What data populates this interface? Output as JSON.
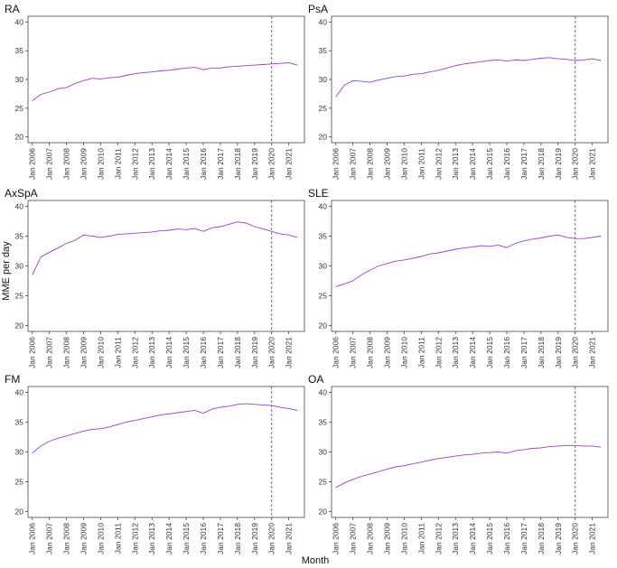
{
  "figure": {
    "xlabel": "Month",
    "ylabel": "MME per day",
    "series_color": "#9d3fc4"
  },
  "chart_data": [
    {
      "type": "line",
      "title": "RA",
      "ylim": [
        19,
        41
      ],
      "yticks": [
        20,
        25,
        30,
        35,
        40
      ],
      "xlim": [
        "2005-10",
        "2021-12"
      ],
      "xticks": [
        "Jan 2006",
        "Jan 2007",
        "Jan 2008",
        "Jan 2009",
        "Jan 2010",
        "Jan 2011",
        "Jan 2012",
        "Jan 2013",
        "Jan 2014",
        "Jan 2015",
        "Jan 2016",
        "Jan 2017",
        "Jan 2018",
        "Jan 2019",
        "Jan 2020",
        "Jan 2021"
      ],
      "reference_line": "2020-01",
      "x": [
        "2006-01",
        "2006-07",
        "2007-01",
        "2007-07",
        "2008-01",
        "2008-07",
        "2009-01",
        "2009-07",
        "2010-01",
        "2010-07",
        "2011-01",
        "2011-07",
        "2012-01",
        "2012-07",
        "2013-01",
        "2013-07",
        "2014-01",
        "2014-07",
        "2015-01",
        "2015-07",
        "2016-01",
        "2016-07",
        "2017-01",
        "2017-07",
        "2018-01",
        "2018-07",
        "2019-01",
        "2019-07",
        "2020-01",
        "2020-07",
        "2021-01",
        "2021-07"
      ],
      "values": [
        26.3,
        27.4,
        27.8,
        28.4,
        28.6,
        29.3,
        29.8,
        30.2,
        30.1,
        30.3,
        30.4,
        30.7,
        31.0,
        31.2,
        31.3,
        31.5,
        31.6,
        31.8,
        32.0,
        32.1,
        31.7,
        32.0,
        32.0,
        32.2,
        32.3,
        32.4,
        32.5,
        32.6,
        32.7,
        32.8,
        32.9,
        32.5
      ]
    },
    {
      "type": "line",
      "title": "PsA",
      "ylim": [
        19,
        41
      ],
      "yticks": [
        20,
        25,
        30,
        35,
        40
      ],
      "xlim": [
        "2005-10",
        "2021-12"
      ],
      "xticks": [
        "Jan 2006",
        "Jan 2007",
        "Jan 2008",
        "Jan 2009",
        "Jan 2010",
        "Jan 2011",
        "Jan 2012",
        "Jan 2013",
        "Jan 2014",
        "Jan 2015",
        "Jan 2016",
        "Jan 2017",
        "Jan 2018",
        "Jan 2019",
        "Jan 2020",
        "Jan 2021"
      ],
      "reference_line": "2020-01",
      "x": [
        "2006-01",
        "2006-07",
        "2007-01",
        "2007-07",
        "2008-01",
        "2008-07",
        "2009-01",
        "2009-07",
        "2010-01",
        "2010-07",
        "2011-01",
        "2011-07",
        "2012-01",
        "2012-07",
        "2013-01",
        "2013-07",
        "2014-01",
        "2014-07",
        "2015-01",
        "2015-07",
        "2016-01",
        "2016-07",
        "2017-01",
        "2017-07",
        "2018-01",
        "2018-07",
        "2019-01",
        "2019-07",
        "2020-01",
        "2020-07",
        "2021-01",
        "2021-07"
      ],
      "values": [
        27.0,
        29.0,
        29.8,
        29.7,
        29.5,
        29.9,
        30.2,
        30.5,
        30.6,
        30.9,
        31.0,
        31.3,
        31.6,
        32.0,
        32.4,
        32.7,
        32.9,
        33.1,
        33.3,
        33.4,
        33.2,
        33.4,
        33.3,
        33.5,
        33.7,
        33.8,
        33.6,
        33.5,
        33.3,
        33.4,
        33.6,
        33.3
      ]
    },
    {
      "type": "line",
      "title": "AxSpA",
      "ylim": [
        19,
        41
      ],
      "yticks": [
        20,
        25,
        30,
        35,
        40
      ],
      "xlim": [
        "2005-10",
        "2021-12"
      ],
      "xticks": [
        "Jan 2006",
        "Jan 2007",
        "Jan 2008",
        "Jan 2009",
        "Jan 2010",
        "Jan 2011",
        "Jan 2012",
        "Jan 2013",
        "Jan 2014",
        "Jan 2015",
        "Jan 2016",
        "Jan 2017",
        "Jan 2018",
        "Jan 2019",
        "Jan 2020",
        "Jan 2021"
      ],
      "reference_line": "2020-01",
      "x": [
        "2006-01",
        "2006-07",
        "2007-01",
        "2007-07",
        "2008-01",
        "2008-07",
        "2009-01",
        "2009-07",
        "2010-01",
        "2010-07",
        "2011-01",
        "2011-07",
        "2012-01",
        "2012-07",
        "2013-01",
        "2013-07",
        "2014-01",
        "2014-07",
        "2015-01",
        "2015-07",
        "2016-01",
        "2016-07",
        "2017-01",
        "2017-07",
        "2018-01",
        "2018-07",
        "2019-01",
        "2019-07",
        "2020-01",
        "2020-07",
        "2021-01",
        "2021-07"
      ],
      "values": [
        28.5,
        31.5,
        32.3,
        33.0,
        33.8,
        34.3,
        35.2,
        35.0,
        34.8,
        35.0,
        35.3,
        35.4,
        35.5,
        35.6,
        35.7,
        35.9,
        36.0,
        36.2,
        36.1,
        36.3,
        35.8,
        36.4,
        36.6,
        37.0,
        37.4,
        37.2,
        36.6,
        36.2,
        35.8,
        35.4,
        35.2,
        34.8
      ]
    },
    {
      "type": "line",
      "title": "SLE",
      "ylim": [
        19,
        41
      ],
      "yticks": [
        20,
        25,
        30,
        35,
        40
      ],
      "xlim": [
        "2005-10",
        "2021-12"
      ],
      "xticks": [
        "Jan 2006",
        "Jan 2007",
        "Jan 2008",
        "Jan 2009",
        "Jan 2010",
        "Jan 2011",
        "Jan 2012",
        "Jan 2013",
        "Jan 2014",
        "Jan 2015",
        "Jan 2016",
        "Jan 2017",
        "Jan 2018",
        "Jan 2019",
        "Jan 2020",
        "Jan 2021"
      ],
      "reference_line": "2020-01",
      "x": [
        "2006-01",
        "2006-07",
        "2007-01",
        "2007-07",
        "2008-01",
        "2008-07",
        "2009-01",
        "2009-07",
        "2010-01",
        "2010-07",
        "2011-01",
        "2011-07",
        "2012-01",
        "2012-07",
        "2013-01",
        "2013-07",
        "2014-01",
        "2014-07",
        "2015-01",
        "2015-07",
        "2016-01",
        "2016-07",
        "2017-01",
        "2017-07",
        "2018-01",
        "2018-07",
        "2019-01",
        "2019-07",
        "2020-01",
        "2020-07",
        "2021-01",
        "2021-07"
      ],
      "values": [
        26.5,
        27.0,
        27.5,
        28.5,
        29.3,
        30.0,
        30.4,
        30.8,
        31.0,
        31.3,
        31.6,
        32.0,
        32.2,
        32.5,
        32.8,
        33.0,
        33.2,
        33.4,
        33.3,
        33.5,
        33.1,
        33.8,
        34.2,
        34.5,
        34.7,
        35.0,
        35.2,
        34.8,
        34.6,
        34.6,
        34.8,
        35.0
      ]
    },
    {
      "type": "line",
      "title": "FM",
      "ylim": [
        19,
        41
      ],
      "yticks": [
        20,
        25,
        30,
        35,
        40
      ],
      "xlim": [
        "2005-10",
        "2021-12"
      ],
      "xticks": [
        "Jan 2006",
        "Jan 2007",
        "Jan 2008",
        "Jan 2009",
        "Jan 2010",
        "Jan 2011",
        "Jan 2012",
        "Jan 2013",
        "Jan 2014",
        "Jan 2015",
        "Jan 2016",
        "Jan 2017",
        "Jan 2018",
        "Jan 2019",
        "Jan 2020",
        "Jan 2021"
      ],
      "reference_line": "2020-01",
      "x": [
        "2006-01",
        "2006-07",
        "2007-01",
        "2007-07",
        "2008-01",
        "2008-07",
        "2009-01",
        "2009-07",
        "2010-01",
        "2010-07",
        "2011-01",
        "2011-07",
        "2012-01",
        "2012-07",
        "2013-01",
        "2013-07",
        "2014-01",
        "2014-07",
        "2015-01",
        "2015-07",
        "2016-01",
        "2016-07",
        "2017-01",
        "2017-07",
        "2018-01",
        "2018-07",
        "2019-01",
        "2019-07",
        "2020-01",
        "2020-07",
        "2021-01",
        "2021-07"
      ],
      "values": [
        29.8,
        31.0,
        31.8,
        32.3,
        32.7,
        33.1,
        33.5,
        33.8,
        33.9,
        34.2,
        34.6,
        35.0,
        35.3,
        35.6,
        35.9,
        36.2,
        36.4,
        36.6,
        36.8,
        37.0,
        36.5,
        37.2,
        37.5,
        37.7,
        38.0,
        38.1,
        38.0,
        37.9,
        37.8,
        37.5,
        37.3,
        37.0
      ]
    },
    {
      "type": "line",
      "title": "OA",
      "ylim": [
        19,
        41
      ],
      "yticks": [
        20,
        25,
        30,
        35,
        40
      ],
      "xlim": [
        "2005-10",
        "2021-12"
      ],
      "xticks": [
        "Jan 2006",
        "Jan 2007",
        "Jan 2008",
        "Jan 2009",
        "Jan 2010",
        "Jan 2011",
        "Jan 2012",
        "Jan 2013",
        "Jan 2014",
        "Jan 2015",
        "Jan 2016",
        "Jan 2017",
        "Jan 2018",
        "Jan 2019",
        "Jan 2020",
        "Jan 2021"
      ],
      "reference_line": "2020-01",
      "x": [
        "2006-01",
        "2006-07",
        "2007-01",
        "2007-07",
        "2008-01",
        "2008-07",
        "2009-01",
        "2009-07",
        "2010-01",
        "2010-07",
        "2011-01",
        "2011-07",
        "2012-01",
        "2012-07",
        "2013-01",
        "2013-07",
        "2014-01",
        "2014-07",
        "2015-01",
        "2015-07",
        "2016-01",
        "2016-07",
        "2017-01",
        "2017-07",
        "2018-01",
        "2018-07",
        "2019-01",
        "2019-07",
        "2020-01",
        "2020-07",
        "2021-01",
        "2021-07"
      ],
      "values": [
        24.0,
        24.8,
        25.4,
        25.9,
        26.3,
        26.7,
        27.1,
        27.5,
        27.7,
        28.0,
        28.3,
        28.6,
        28.9,
        29.1,
        29.3,
        29.5,
        29.6,
        29.8,
        29.9,
        30.0,
        29.8,
        30.2,
        30.4,
        30.6,
        30.7,
        30.9,
        31.0,
        31.1,
        31.1,
        31.0,
        31.0,
        30.8
      ]
    }
  ]
}
